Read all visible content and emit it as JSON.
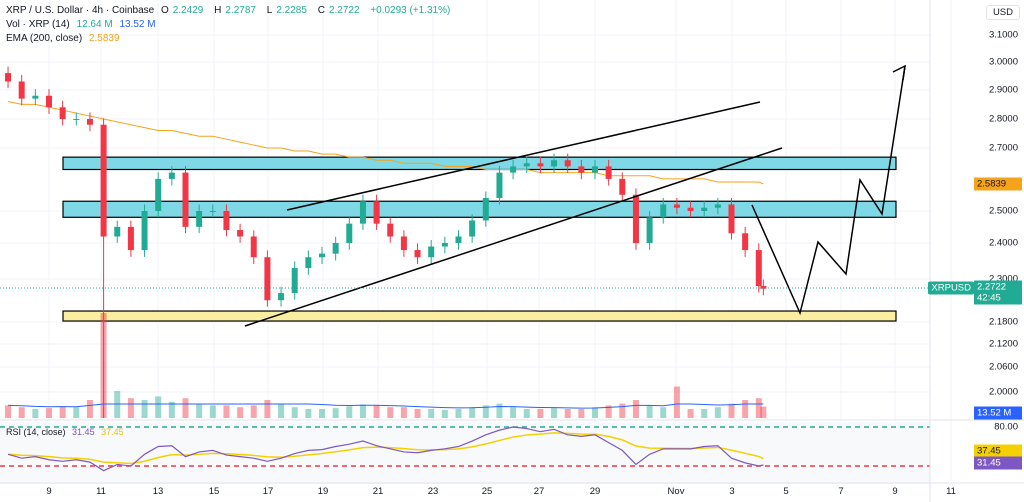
{
  "header": {
    "symbol": "XRP / U.S. Dollar · 4h · Coinbase",
    "o_label": "O",
    "open": "2.2429",
    "h_label": "H",
    "high": "2.2787",
    "l_label": "L",
    "low": "2.2285",
    "c_label": "C",
    "close": "2.2722",
    "change": "+0.0293 (+1.31%)",
    "vol_label": "Vol · XRP (14)",
    "vol": "12.64 M",
    "vol_ma": "13.52 M",
    "ema_label": "EMA (200, close)",
    "ema": "2.5839",
    "rsi_label": "RSI (14, close)",
    "rsi": "31.45",
    "rsi_ma": "37.45"
  },
  "axis": {
    "currency": "USD",
    "price_ticks": [
      "3.1000",
      "3.0000",
      "2.9000",
      "2.8000",
      "2.7000",
      "2.5000",
      "2.4000",
      "2.3000",
      "2.1800",
      "2.1200",
      "2.0600",
      "2.0000"
    ],
    "rsi_tick": "80.00",
    "date_ticks": [
      "9",
      "11",
      "13",
      "15",
      "17",
      "19",
      "21",
      "23",
      "25",
      "27",
      "29",
      "Nov",
      "3",
      "5",
      "7",
      "9",
      "11"
    ],
    "ema_tag": "2.5839",
    "symbol_tag": "XRPUSD",
    "price_tag": "2.2722",
    "countdown": "42:45",
    "vol_tag": "13.52 M",
    "rsi_ma_tag": "37.45",
    "rsi_tag": "31.45"
  },
  "colors": {
    "up": "#22ab94",
    "down": "#f23645",
    "ema": "#f7a21b",
    "vol_ma": "#2962ff",
    "rsi": "#7e57c2",
    "rsi_ma": "#f5d000",
    "zone_blue": "#7fd8e6",
    "zone_yellow": "#fbeea0"
  },
  "chart_data": {
    "type": "candlestick",
    "title": "XRP / U.S. Dollar · 4h · Coinbase",
    "scale": "log",
    "grid": true,
    "points": [
      {
        "t": "Oct 7 12:00",
        "close": 2.93,
        "ema": 2.86,
        "vol": 14,
        "rsi": 45
      },
      {
        "t": "Oct 8 00:00",
        "close": 2.87,
        "ema": 2.85,
        "vol": 12,
        "rsi": 40
      },
      {
        "t": "Oct 8 12:00",
        "close": 2.88,
        "ema": 2.85,
        "vol": 10,
        "rsi": 42
      },
      {
        "t": "Oct 9 00:00",
        "close": 2.84,
        "ema": 2.84,
        "vol": 11,
        "rsi": 38
      },
      {
        "t": "Oct 9 12:00",
        "close": 2.8,
        "ema": 2.83,
        "vol": 13,
        "rsi": 36
      },
      {
        "t": "Oct 10 00:00",
        "close": 2.8,
        "ema": 2.82,
        "vol": 12,
        "rsi": 38
      },
      {
        "t": "Oct 10 12:00",
        "close": 2.78,
        "ema": 2.81,
        "vol": 20,
        "rsi": 35
      },
      {
        "t": "Oct 11 00:00",
        "close": 2.42,
        "ema": 2.8,
        "vol": 260,
        "rsi": 24
      },
      {
        "t": "Oct 11 12:00",
        "close": 2.45,
        "ema": 2.79,
        "vol": 30,
        "rsi": 32
      },
      {
        "t": "Oct 12 00:00",
        "close": 2.38,
        "ema": 2.78,
        "vol": 22,
        "rsi": 30
      },
      {
        "t": "Oct 12 12:00",
        "close": 2.5,
        "ema": 2.77,
        "vol": 20,
        "rsi": 45
      },
      {
        "t": "Oct 13 00:00",
        "close": 2.6,
        "ema": 2.76,
        "vol": 24,
        "rsi": 55
      },
      {
        "t": "Oct 13 12:00",
        "close": 2.62,
        "ema": 2.76,
        "vol": 18,
        "rsi": 56
      },
      {
        "t": "Oct 14 00:00",
        "close": 2.45,
        "ema": 2.75,
        "vol": 22,
        "rsi": 42
      },
      {
        "t": "Oct 14 12:00",
        "close": 2.5,
        "ema": 2.74,
        "vol": 16,
        "rsi": 48
      },
      {
        "t": "Oct 15 00:00",
        "close": 2.5,
        "ema": 2.74,
        "vol": 14,
        "rsi": 50
      },
      {
        "t": "Oct 15 12:00",
        "close": 2.44,
        "ema": 2.73,
        "vol": 14,
        "rsi": 44
      },
      {
        "t": "Oct 16 00:00",
        "close": 2.42,
        "ema": 2.72,
        "vol": 12,
        "rsi": 42
      },
      {
        "t": "Oct 16 12:00",
        "close": 2.36,
        "ema": 2.71,
        "vol": 14,
        "rsi": 40
      },
      {
        "t": "Oct 17 00:00",
        "close": 2.24,
        "ema": 2.7,
        "vol": 20,
        "rsi": 36
      },
      {
        "t": "Oct 17 12:00",
        "close": 2.26,
        "ema": 2.7,
        "vol": 16,
        "rsi": 40
      },
      {
        "t": "Oct 18 00:00",
        "close": 2.33,
        "ema": 2.69,
        "vol": 12,
        "rsi": 46
      },
      {
        "t": "Oct 18 12:00",
        "close": 2.36,
        "ema": 2.69,
        "vol": 10,
        "rsi": 50
      },
      {
        "t": "Oct 19 00:00",
        "close": 2.37,
        "ema": 2.68,
        "vol": 10,
        "rsi": 51
      },
      {
        "t": "Oct 19 12:00",
        "close": 2.4,
        "ema": 2.68,
        "vol": 11,
        "rsi": 55
      },
      {
        "t": "Oct 20 00:00",
        "close": 2.46,
        "ema": 2.67,
        "vol": 13,
        "rsi": 58
      },
      {
        "t": "Oct 20 12:00",
        "close": 2.53,
        "ema": 2.67,
        "vol": 15,
        "rsi": 62
      },
      {
        "t": "Oct 21 00:00",
        "close": 2.46,
        "ema": 2.66,
        "vol": 14,
        "rsi": 56
      },
      {
        "t": "Oct 21 12:00",
        "close": 2.42,
        "ema": 2.66,
        "vol": 12,
        "rsi": 52
      },
      {
        "t": "Oct 22 00:00",
        "close": 2.38,
        "ema": 2.65,
        "vol": 12,
        "rsi": 48
      },
      {
        "t": "Oct 22 12:00",
        "close": 2.36,
        "ema": 2.65,
        "vol": 10,
        "rsi": 47
      },
      {
        "t": "Oct 23 00:00",
        "close": 2.39,
        "ema": 2.65,
        "vol": 10,
        "rsi": 50
      },
      {
        "t": "Oct 23 12:00",
        "close": 2.4,
        "ema": 2.64,
        "vol": 9,
        "rsi": 52
      },
      {
        "t": "Oct 24 00:00",
        "close": 2.42,
        "ema": 2.64,
        "vol": 10,
        "rsi": 55
      },
      {
        "t": "Oct 24 12:00",
        "close": 2.47,
        "ema": 2.64,
        "vol": 12,
        "rsi": 62
      },
      {
        "t": "Oct 25 00:00",
        "close": 2.54,
        "ema": 2.63,
        "vol": 14,
        "rsi": 70
      },
      {
        "t": "Oct 25 12:00",
        "close": 2.62,
        "ema": 2.63,
        "vol": 16,
        "rsi": 76
      },
      {
        "t": "Oct 26 00:00",
        "close": 2.64,
        "ema": 2.63,
        "vol": 12,
        "rsi": 80
      },
      {
        "t": "Oct 26 12:00",
        "close": 2.65,
        "ema": 2.63,
        "vol": 10,
        "rsi": 78
      },
      {
        "t": "Oct 27 00:00",
        "close": 2.64,
        "ema": 2.62,
        "vol": 10,
        "rsi": 74
      },
      {
        "t": "Oct 27 12:00",
        "close": 2.66,
        "ema": 2.62,
        "vol": 11,
        "rsi": 77
      },
      {
        "t": "Oct 28 00:00",
        "close": 2.64,
        "ema": 2.62,
        "vol": 10,
        "rsi": 70
      },
      {
        "t": "Oct 28 12:00",
        "close": 2.62,
        "ema": 2.62,
        "vol": 10,
        "rsi": 68
      },
      {
        "t": "Oct 29 00:00",
        "close": 2.64,
        "ema": 2.62,
        "vol": 12,
        "rsi": 70
      },
      {
        "t": "Oct 29 12:00",
        "close": 2.6,
        "ema": 2.61,
        "vol": 14,
        "rsi": 60
      },
      {
        "t": "Oct 30 00:00",
        "close": 2.55,
        "ema": 2.61,
        "vol": 16,
        "rsi": 50
      },
      {
        "t": "Oct 30 12:00",
        "close": 2.4,
        "ema": 2.61,
        "vol": 20,
        "rsi": 32
      },
      {
        "t": "Oct 31 00:00",
        "close": 2.48,
        "ema": 2.61,
        "vol": 14,
        "rsi": 45
      },
      {
        "t": "Oct 31 12:00",
        "close": 2.52,
        "ema": 2.6,
        "vol": 12,
        "rsi": 52
      },
      {
        "t": "Nov 1 00:00",
        "close": 2.51,
        "ema": 2.6,
        "vol": 35,
        "rsi": 52
      },
      {
        "t": "Nov 1 12:00",
        "close": 2.5,
        "ema": 2.6,
        "vol": 10,
        "rsi": 52
      },
      {
        "t": "Nov 2 00:00",
        "close": 2.51,
        "ema": 2.6,
        "vol": 10,
        "rsi": 55
      },
      {
        "t": "Nov 2 12:00",
        "close": 2.52,
        "ema": 2.59,
        "vol": 12,
        "rsi": 56
      },
      {
        "t": "Nov 3 00:00",
        "close": 2.43,
        "ema": 2.59,
        "vol": 16,
        "rsi": 40
      },
      {
        "t": "Nov 3 12:00",
        "close": 2.38,
        "ema": 2.59,
        "vol": 20,
        "rsi": 34
      },
      {
        "t": "Nov 4 00:00",
        "close": 2.28,
        "ema": 2.59,
        "vol": 22,
        "rsi": 30
      },
      {
        "t": "Nov 4 04:00",
        "close": 2.2722,
        "ema": 2.5839,
        "vol": 12.64,
        "rsi": 31.45
      }
    ],
    "annotations": {
      "zones": [
        {
          "color": "blue",
          "from": 2.63,
          "to": 2.67
        },
        {
          "color": "blue",
          "from": 2.48,
          "to": 2.53
        },
        {
          "color": "yellow",
          "from": 2.19,
          "to": 2.21
        }
      ],
      "rsi_levels": [
        80,
        30
      ]
    }
  }
}
